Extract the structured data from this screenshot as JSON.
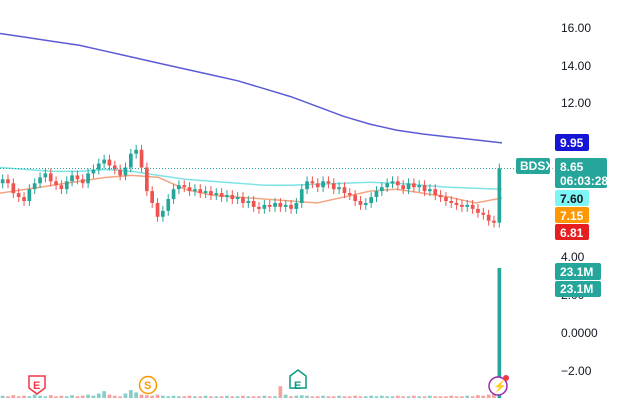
{
  "colors": {
    "up": "#26a69a",
    "down": "#ef5350",
    "ma_slow": "#5b5bd6",
    "ma_mid": "#7fe3e6",
    "ma_fast": "#f4a582",
    "price_line": "#26a69a",
    "axis_text": "#131722",
    "earnings": "#f23645",
    "split": "#ff9800",
    "earnings_up": "#089981",
    "lightning": "#9c27b0"
  },
  "axis": {
    "ticks": [
      "16.00",
      "14.00",
      "12.00",
      "4.00",
      "2.00",
      "0.0000",
      "−2.00"
    ]
  },
  "price_tags": {
    "symbol": "BDSX",
    "price": "8.65",
    "countdown": "06:03:28",
    "ma_slow": "9.95",
    "ma_mid": "7.60",
    "ma_fast": "7.15",
    "low_marker": "6.81",
    "volume_a": "23.1M",
    "volume_b": "23.1M"
  },
  "events": [
    {
      "label": "E",
      "icon": "earnings-icon"
    },
    {
      "label": "S",
      "icon": "split-icon"
    },
    {
      "label": "E",
      "icon": "earnings-up-icon"
    },
    {
      "label": "⚡",
      "icon": "lightning-icon"
    }
  ],
  "chart_data": {
    "type": "candlestick",
    "ylim": [
      -3.2,
      17.2
    ],
    "last_price": 8.65,
    "ma_slow_last": 9.95,
    "ma_mid_last": 7.6,
    "ma_fast_last": 7.15,
    "series": {
      "close": [
        8.1,
        7.9,
        7.4,
        7.2,
        7.0,
        7.6,
        7.9,
        8.2,
        8.4,
        8.0,
        7.8,
        7.6,
        8.0,
        8.3,
        8.1,
        7.9,
        8.4,
        8.6,
        8.9,
        9.1,
        8.8,
        8.6,
        8.3,
        8.7,
        9.4,
        9.6,
        8.7,
        7.5,
        6.9,
        6.2,
        6.5,
        7.1,
        7.6,
        7.8,
        7.7,
        7.5,
        7.6,
        7.4,
        7.5,
        7.3,
        7.4,
        7.2,
        7.3,
        7.1,
        7.2,
        6.9,
        7.0,
        6.7,
        6.6,
        6.8,
        6.7,
        6.9,
        6.7,
        6.8,
        6.6,
        6.9,
        7.6,
        8.0,
        7.9,
        7.7,
        8.0,
        7.9,
        7.6,
        7.7,
        7.4,
        7.3,
        7.0,
        6.8,
        6.9,
        7.2,
        7.5,
        7.7,
        7.9,
        8.0,
        7.8,
        7.6,
        7.9,
        7.7,
        7.8,
        7.5,
        7.6,
        7.3,
        7.2,
        7.0,
        6.9,
        6.8,
        6.7,
        6.8,
        6.6,
        6.4,
        6.3,
        6.0,
        5.9,
        8.65
      ],
      "volume_m": [
        0.4,
        0.3,
        0.5,
        0.3,
        0.4,
        0.3,
        0.6,
        0.4,
        0.3,
        0.5,
        0.3,
        0.4,
        0.3,
        0.5,
        0.3,
        0.4,
        0.6,
        0.4,
        0.8,
        1.2,
        0.6,
        0.4,
        0.3,
        0.8,
        1.4,
        1.0,
        0.6,
        0.5,
        0.4,
        0.6,
        0.4,
        0.3,
        0.4,
        0.3,
        0.3,
        0.4,
        0.3,
        0.3,
        0.4,
        0.3,
        0.3,
        0.3,
        0.4,
        0.3,
        0.3,
        0.4,
        0.3,
        0.3,
        0.3,
        0.4,
        0.3,
        0.3,
        2.1,
        0.6,
        0.3,
        0.4,
        0.5,
        0.4,
        0.3,
        0.3,
        0.4,
        0.3,
        0.3,
        0.4,
        0.3,
        0.3,
        0.4,
        0.3,
        0.3,
        0.4,
        0.3,
        0.4,
        0.3,
        0.3,
        0.4,
        0.3,
        0.3,
        0.4,
        0.3,
        0.3,
        0.4,
        0.3,
        0.3,
        0.3,
        0.4,
        0.3,
        0.3,
        0.4,
        0.3,
        0.5,
        0.4,
        0.6,
        0.8,
        23.1
      ]
    },
    "ma_slow": [
      15.5,
      15.3,
      15.1,
      14.9,
      14.6,
      14.3,
      14.0,
      13.7,
      13.4,
      13.1,
      12.7,
      12.3,
      11.8,
      11.3,
      10.9,
      10.6,
      10.4,
      10.25,
      10.1,
      9.95
    ],
    "ma_mid": [
      8.7,
      8.6,
      8.5,
      8.5,
      8.6,
      8.5,
      8.3,
      8.1,
      8.0,
      7.9,
      7.8,
      7.8,
      7.85,
      7.9,
      7.95,
      7.9,
      7.8,
      7.7,
      7.65,
      7.6
    ],
    "ma_fast": [
      7.4,
      7.6,
      7.8,
      8.0,
      8.2,
      8.3,
      8.2,
      7.6,
      7.3,
      7.2,
      7.1,
      7.0,
      6.9,
      7.2,
      7.5,
      7.6,
      7.4,
      7.2,
      6.9,
      7.15
    ]
  }
}
